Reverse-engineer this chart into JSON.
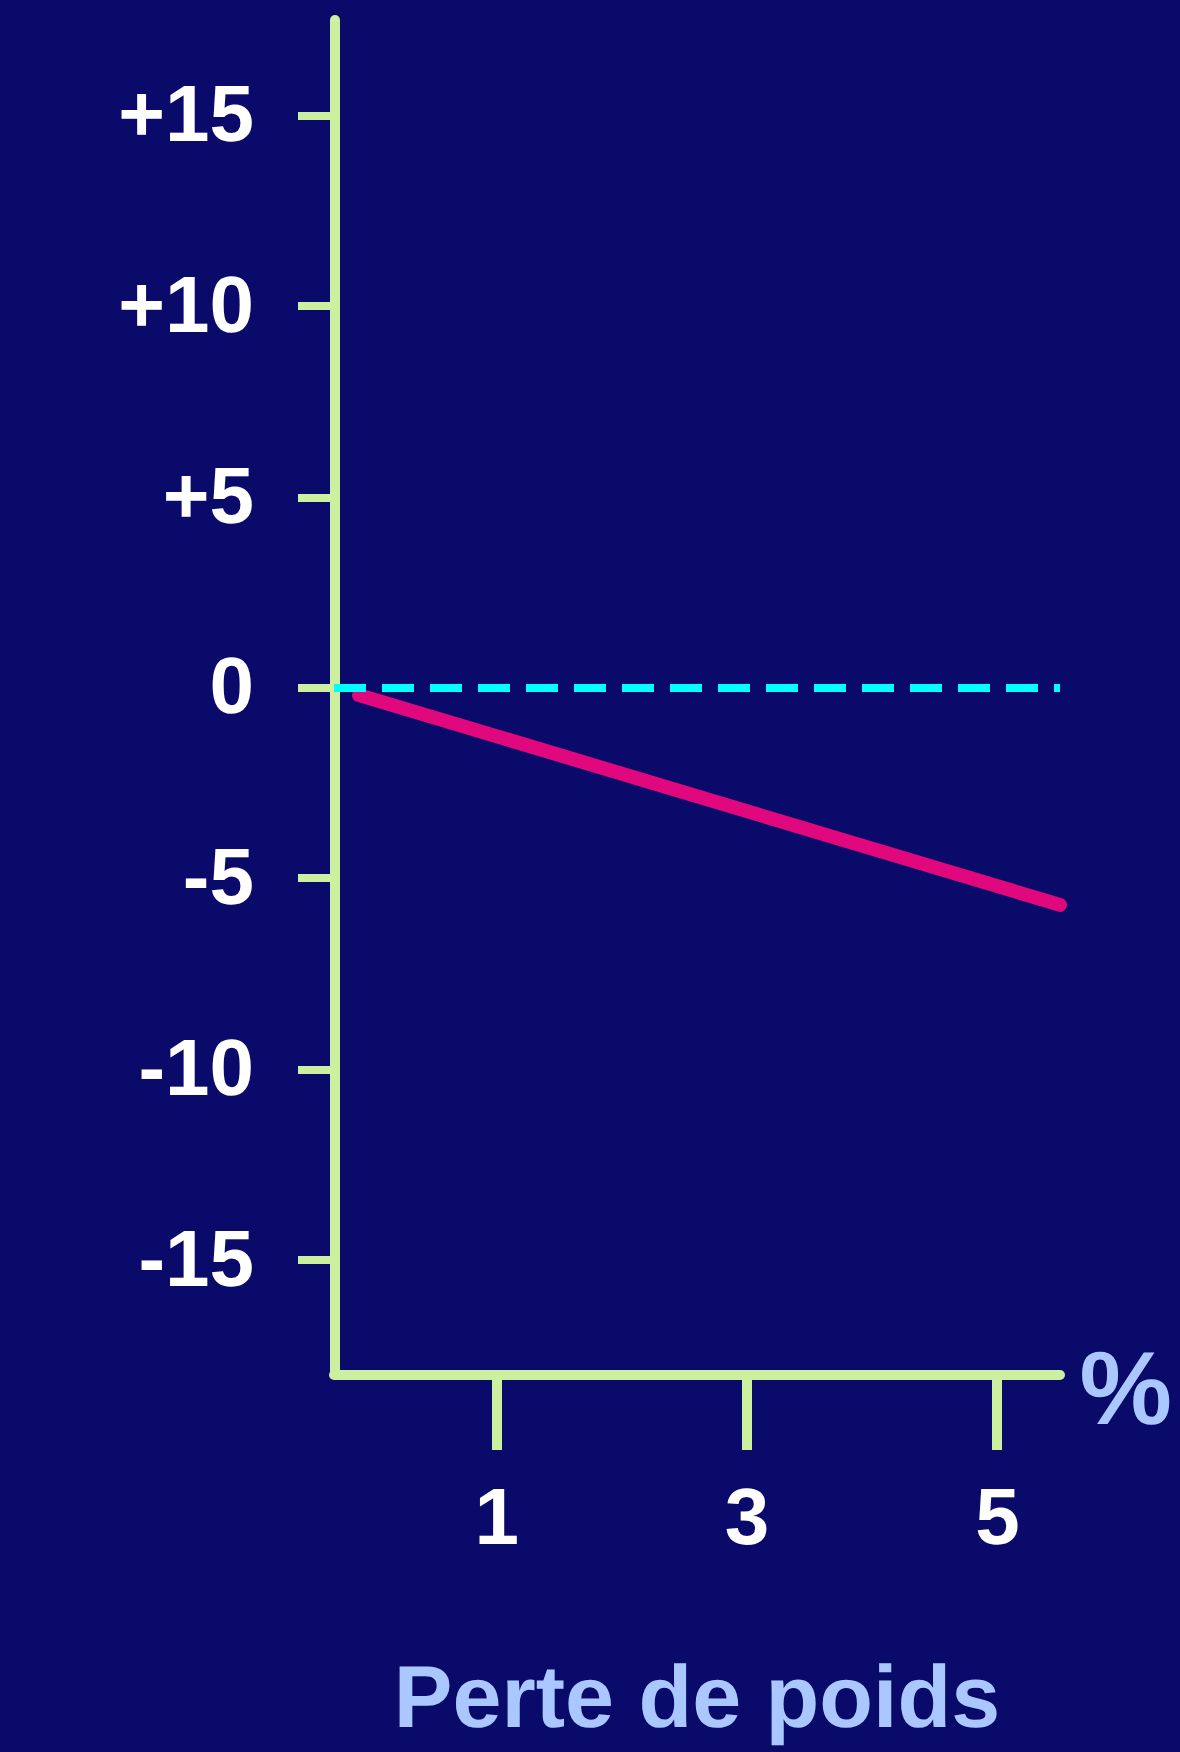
{
  "chart_data": {
    "type": "line",
    "xlabel": "Perte de poids",
    "annotations": [
      "%"
    ],
    "x": [
      -0.1,
      5.5
    ],
    "series": [
      {
        "color": "#e0087c",
        "values": [
          -0.2,
          -5.7
        ]
      }
    ],
    "xlim": [
      -0.3,
      5.5
    ],
    "ylim": [
      -18,
      17.5
    ],
    "xticks": [
      1,
      3,
      5
    ],
    "yticks": [
      {
        "value": 15,
        "label": "+15"
      },
      {
        "value": 10,
        "label": "+10"
      },
      {
        "value": 5,
        "label": "+5"
      },
      0,
      -5,
      -10,
      -15
    ],
    "ref_lines": [
      {
        "axis": "y",
        "value": 0,
        "color": "#00ffff",
        "line_style": "dashed"
      }
    ],
    "grid": false,
    "line_style": "solid"
  }
}
